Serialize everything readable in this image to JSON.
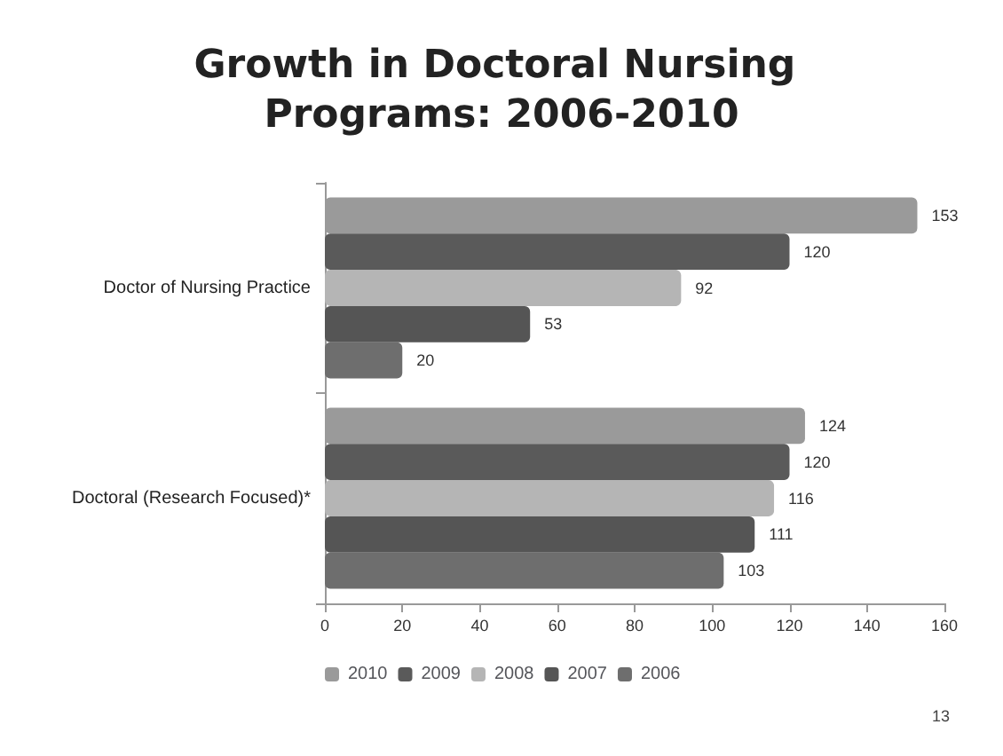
{
  "chart_data": {
    "type": "bar",
    "orientation": "horizontal",
    "title": "Growth in Doctoral Nursing Programs: 2006-2010",
    "categories": [
      "Doctor of Nursing Practice",
      "Doctoral (Research Focused)*"
    ],
    "series": [
      {
        "name": "2010",
        "color": "#9a9a9a",
        "values": [
          153,
          124
        ]
      },
      {
        "name": "2009",
        "color": "#5a5a5a",
        "values": [
          120,
          120
        ]
      },
      {
        "name": "2008",
        "color": "#b5b5b5",
        "values": [
          92,
          116
        ]
      },
      {
        "name": "2007",
        "color": "#555555",
        "values": [
          53,
          111
        ]
      },
      {
        "name": "2006",
        "color": "#6e6e6e",
        "values": [
          20,
          103
        ]
      }
    ],
    "xlim": [
      0,
      160
    ],
    "xticks": [
      0,
      20,
      40,
      60,
      80,
      100,
      120,
      140,
      160
    ],
    "data_labels": true,
    "legend": "bottom",
    "grid": false,
    "annotations": [
      "13"
    ]
  }
}
